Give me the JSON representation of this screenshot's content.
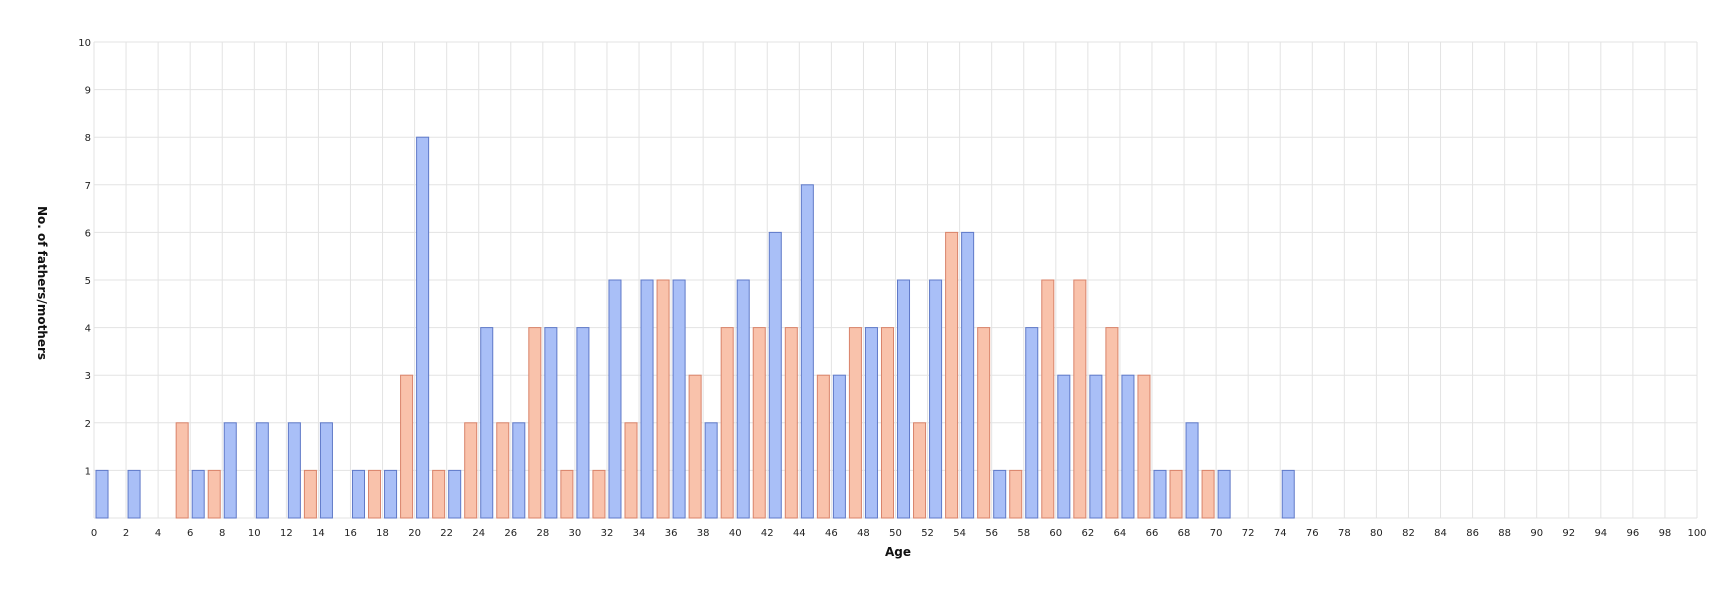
{
  "chart_data": {
    "type": "bar",
    "title": "",
    "xlabel": "Age",
    "ylabel": "No. of fathers/mothers",
    "xlim": [
      0,
      100
    ],
    "ylim": [
      0,
      10
    ],
    "grid": true,
    "legend": "none",
    "colors": {
      "blue_fill": "#a9bff7",
      "blue_stroke": "#5f79c8",
      "orange_fill": "#f9c2ab",
      "orange_stroke": "#d9836a"
    },
    "x_ticks": [
      0,
      2,
      4,
      6,
      8,
      10,
      12,
      14,
      16,
      18,
      20,
      22,
      24,
      26,
      28,
      30,
      32,
      34,
      36,
      38,
      40,
      42,
      44,
      46,
      48,
      50,
      52,
      54,
      56,
      58,
      60,
      62,
      64,
      66,
      68,
      70,
      72,
      74,
      76,
      78,
      80,
      82,
      84,
      86,
      88,
      90,
      92,
      94,
      96,
      98,
      100
    ],
    "y_ticks": [
      1,
      2,
      3,
      4,
      5,
      6,
      7,
      8,
      9,
      10
    ],
    "series": [
      {
        "color": "blue",
        "points": [
          {
            "x": 0.5,
            "y": 1
          },
          {
            "x": 2.5,
            "y": 1
          },
          {
            "x": 6.5,
            "y": 1
          },
          {
            "x": 8.5,
            "y": 2
          },
          {
            "x": 10.5,
            "y": 2
          },
          {
            "x": 12.5,
            "y": 2
          },
          {
            "x": 14.5,
            "y": 2
          },
          {
            "x": 16.5,
            "y": 1
          },
          {
            "x": 18.5,
            "y": 1
          },
          {
            "x": 20.5,
            "y": 8
          },
          {
            "x": 22.5,
            "y": 1
          },
          {
            "x": 24.5,
            "y": 4
          },
          {
            "x": 26.5,
            "y": 2
          },
          {
            "x": 28.5,
            "y": 4
          },
          {
            "x": 30.5,
            "y": 4
          },
          {
            "x": 32.5,
            "y": 5
          },
          {
            "x": 34.5,
            "y": 5
          },
          {
            "x": 36.5,
            "y": 5
          },
          {
            "x": 38.5,
            "y": 2
          },
          {
            "x": 40.5,
            "y": 5
          },
          {
            "x": 42.5,
            "y": 6
          },
          {
            "x": 44.5,
            "y": 7
          },
          {
            "x": 46.5,
            "y": 3
          },
          {
            "x": 48.5,
            "y": 4
          },
          {
            "x": 50.5,
            "y": 5
          },
          {
            "x": 52.5,
            "y": 5
          },
          {
            "x": 54.5,
            "y": 6
          },
          {
            "x": 56.5,
            "y": 1
          },
          {
            "x": 58.5,
            "y": 4
          },
          {
            "x": 60.5,
            "y": 3
          },
          {
            "x": 62.5,
            "y": 3
          },
          {
            "x": 64.5,
            "y": 3
          },
          {
            "x": 66.5,
            "y": 1
          },
          {
            "x": 68.5,
            "y": 2
          },
          {
            "x": 70.5,
            "y": 1
          },
          {
            "x": 74.5,
            "y": 1
          }
        ]
      },
      {
        "color": "orange",
        "points": [
          {
            "x": 5.5,
            "y": 2
          },
          {
            "x": 7.5,
            "y": 1
          },
          {
            "x": 13.5,
            "y": 1
          },
          {
            "x": 17.5,
            "y": 1
          },
          {
            "x": 19.5,
            "y": 3
          },
          {
            "x": 21.5,
            "y": 1
          },
          {
            "x": 23.5,
            "y": 2
          },
          {
            "x": 25.5,
            "y": 2
          },
          {
            "x": 27.5,
            "y": 4
          },
          {
            "x": 29.5,
            "y": 1
          },
          {
            "x": 31.5,
            "y": 1
          },
          {
            "x": 33.5,
            "y": 2
          },
          {
            "x": 35.5,
            "y": 5
          },
          {
            "x": 37.5,
            "y": 3
          },
          {
            "x": 39.5,
            "y": 4
          },
          {
            "x": 41.5,
            "y": 4
          },
          {
            "x": 43.5,
            "y": 4
          },
          {
            "x": 45.5,
            "y": 3
          },
          {
            "x": 47.5,
            "y": 4
          },
          {
            "x": 49.5,
            "y": 4
          },
          {
            "x": 51.5,
            "y": 2
          },
          {
            "x": 53.5,
            "y": 6
          },
          {
            "x": 55.5,
            "y": 4
          },
          {
            "x": 57.5,
            "y": 1
          },
          {
            "x": 59.5,
            "y": 5
          },
          {
            "x": 61.5,
            "y": 5
          },
          {
            "x": 63.5,
            "y": 4
          },
          {
            "x": 65.5,
            "y": 3
          },
          {
            "x": 67.5,
            "y": 1
          },
          {
            "x": 69.5,
            "y": 1
          }
        ]
      }
    ]
  }
}
